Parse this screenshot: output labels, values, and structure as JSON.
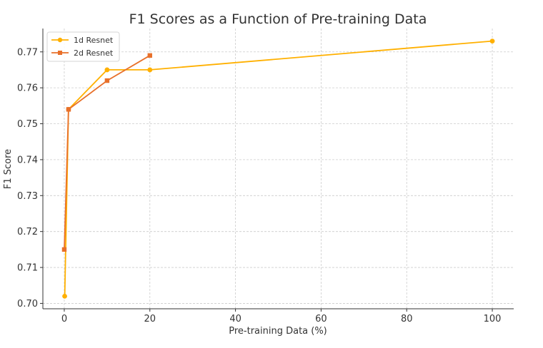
{
  "chart_data": {
    "type": "line",
    "title": "F1 Scores as a Function of Pre-training Data",
    "xlabel": "Pre-training Data (%)",
    "ylabel": "F1 Score",
    "xlim": [
      -5,
      105
    ],
    "ylim": [
      0.6985,
      0.7765
    ],
    "xticks": [
      0,
      20,
      40,
      60,
      80,
      100
    ],
    "yticks": [
      0.7,
      0.71,
      0.72,
      0.73,
      0.74,
      0.75,
      0.76,
      0.77
    ],
    "grid": true,
    "legend_position": "top-left",
    "series": [
      {
        "name": "1d Resnet",
        "color": "#FFB000",
        "marker": "circle",
        "x": [
          0.1,
          1,
          10,
          20,
          100
        ],
        "y": [
          0.702,
          0.754,
          0.765,
          0.765,
          0.773
        ]
      },
      {
        "name": "2d Resnet",
        "color": "#E8702A",
        "marker": "square",
        "x": [
          0,
          1,
          10,
          20
        ],
        "y": [
          0.715,
          0.754,
          0.762,
          0.769
        ]
      }
    ]
  }
}
